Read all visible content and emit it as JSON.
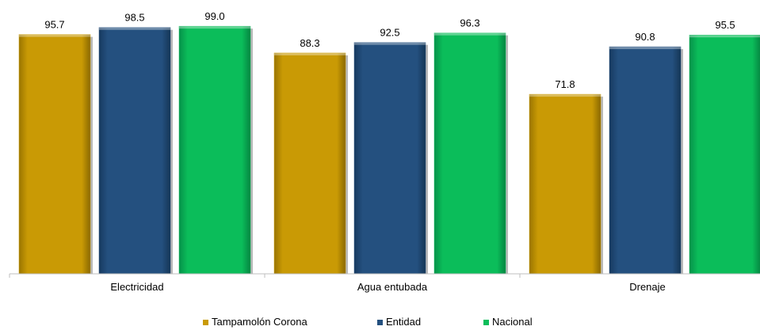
{
  "chart_data": {
    "type": "bar",
    "categories": [
      "Electricidad",
      "Agua entubada",
      "Drenaje"
    ],
    "series": [
      {
        "name": "Tampamolón Corona",
        "values": [
          95.7,
          88.3,
          71.8
        ],
        "color": "#c99a05"
      },
      {
        "name": "Entidad",
        "values": [
          98.5,
          92.5,
          90.8
        ],
        "color": "#24507f"
      },
      {
        "name": "Nacional",
        "values": [
          99.0,
          96.3,
          95.5
        ],
        "color": "#0bbd5a"
      }
    ],
    "value_labels": [
      [
        "95.7",
        "88.3",
        "71.8"
      ],
      [
        "98.5",
        "92.5",
        "90.8"
      ],
      [
        "99.0",
        "96.3",
        "95.5"
      ]
    ],
    "legend_position": "bottom",
    "grid": false,
    "ylim": [
      0,
      100
    ]
  }
}
